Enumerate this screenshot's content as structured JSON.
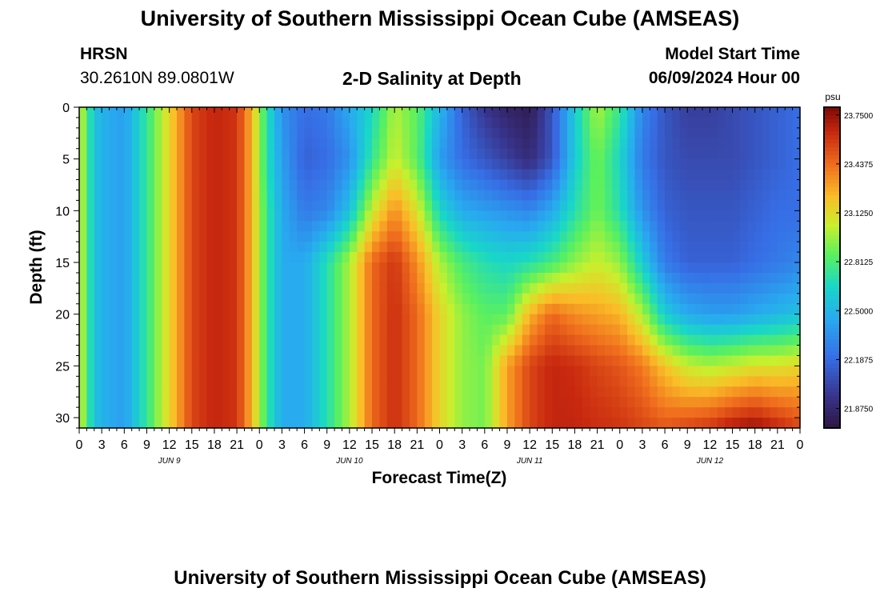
{
  "header": {
    "title": "University of Southern Mississippi Ocean Cube (AMSEAS)",
    "station": "HRSN",
    "coordinates": "30.2610N  89.0801W",
    "plot_title": "2-D Salinity at Depth",
    "model_label": "Model Start Time",
    "model_time": "06/09/2024 Hour 00"
  },
  "footer": {
    "title": "University of Southern Mississippi Ocean Cube (AMSEAS)"
  },
  "chart_data": {
    "type": "heatmap",
    "title": "2-D Salinity at Depth",
    "xlabel": "Forecast Time(Z)",
    "ylabel": "Depth (ft)",
    "xlim": [
      0,
      96
    ],
    "ylim": [
      0,
      31
    ],
    "x_tick_labels": [
      "0",
      "3",
      "6",
      "9",
      "12",
      "15",
      "18",
      "21",
      "0",
      "3",
      "6",
      "9",
      "12",
      "15",
      "18",
      "21",
      "0",
      "3",
      "6",
      "9",
      "12",
      "15",
      "18",
      "21",
      "0",
      "3",
      "6",
      "9",
      "12",
      "15",
      "18",
      "21",
      "0"
    ],
    "day_labels": [
      {
        "label": "JUN 9",
        "hour": 12
      },
      {
        "label": "JUN 10",
        "hour": 36
      },
      {
        "label": "JUN 11",
        "hour": 60
      },
      {
        "label": "JUN 12",
        "hour": 84
      }
    ],
    "y_ticks": [
      0,
      5,
      10,
      15,
      20,
      25,
      30
    ],
    "colorbar": {
      "unit": "psu",
      "min": 21.75,
      "max": 23.8,
      "tick_values": [
        21.875,
        22.1875,
        22.5,
        22.8125,
        23.125,
        23.4375,
        23.75
      ],
      "tick_labels": [
        "21.8750",
        "22.1875",
        "22.5000",
        "22.8125",
        "23.1250",
        "23.4375",
        "23.7500"
      ]
    },
    "profile_depths": [
      0,
      5,
      10,
      15,
      20,
      25,
      31
    ],
    "profiles": [
      {
        "hour": 0,
        "values": [
          23.1,
          23.1,
          23.1,
          23.1,
          23.1,
          23.1,
          23.1
        ]
      },
      {
        "hour": 2,
        "values": [
          22.55,
          22.55,
          22.55,
          22.55,
          22.55,
          22.55,
          22.55
        ]
      },
      {
        "hour": 4,
        "values": [
          22.45,
          22.45,
          22.45,
          22.45,
          22.45,
          22.45,
          22.45
        ]
      },
      {
        "hour": 6,
        "values": [
          22.4,
          22.4,
          22.4,
          22.4,
          22.4,
          22.4,
          22.4
        ]
      },
      {
        "hour": 9,
        "values": [
          22.75,
          22.75,
          22.75,
          22.75,
          22.75,
          22.75,
          22.75
        ]
      },
      {
        "hour": 12,
        "values": [
          23.15,
          23.15,
          23.15,
          23.15,
          23.15,
          23.15,
          23.15
        ]
      },
      {
        "hour": 15,
        "values": [
          23.55,
          23.55,
          23.55,
          23.55,
          23.55,
          23.55,
          23.55
        ]
      },
      {
        "hour": 18,
        "values": [
          23.65,
          23.65,
          23.65,
          23.65,
          23.65,
          23.65,
          23.65
        ]
      },
      {
        "hour": 21,
        "values": [
          23.6,
          23.6,
          23.6,
          23.6,
          23.6,
          23.6,
          23.6
        ]
      },
      {
        "hour": 23,
        "values": [
          23.25,
          23.25,
          23.25,
          23.25,
          23.25,
          23.25,
          23.25
        ]
      },
      {
        "hour": 25,
        "values": [
          22.7,
          22.7,
          22.75,
          22.75,
          22.75,
          22.75,
          22.75
        ]
      },
      {
        "hour": 27,
        "values": [
          22.35,
          22.4,
          22.45,
          22.45,
          22.45,
          22.45,
          22.45
        ]
      },
      {
        "hour": 30,
        "values": [
          22.2,
          22.15,
          22.25,
          22.45,
          22.45,
          22.45,
          22.45
        ]
      },
      {
        "hour": 33,
        "values": [
          22.25,
          22.2,
          22.3,
          22.7,
          22.7,
          22.7,
          22.7
        ]
      },
      {
        "hour": 36,
        "values": [
          22.45,
          22.35,
          22.55,
          23.0,
          23.0,
          23.0,
          23.0
        ]
      },
      {
        "hour": 39,
        "values": [
          22.65,
          22.75,
          23.05,
          23.45,
          23.45,
          23.45,
          23.45
        ]
      },
      {
        "hour": 42,
        "values": [
          23.0,
          23.05,
          23.35,
          23.6,
          23.62,
          23.62,
          23.62
        ]
      },
      {
        "hour": 45,
        "values": [
          22.85,
          22.85,
          23.1,
          23.35,
          23.45,
          23.45,
          23.45
        ]
      },
      {
        "hour": 48,
        "values": [
          22.5,
          22.4,
          22.65,
          23.0,
          23.15,
          23.15,
          23.15
        ]
      },
      {
        "hour": 51,
        "values": [
          22.15,
          22.2,
          22.45,
          22.8,
          22.95,
          22.95,
          22.95
        ]
      },
      {
        "hour": 54,
        "values": [
          21.95,
          22.1,
          22.4,
          22.7,
          22.85,
          22.9,
          22.9
        ]
      },
      {
        "hour": 57,
        "values": [
          21.85,
          22.0,
          22.35,
          22.65,
          22.85,
          23.3,
          23.3
        ]
      },
      {
        "hour": 60,
        "values": [
          21.8,
          21.9,
          22.3,
          22.7,
          23.25,
          23.55,
          23.55
        ]
      },
      {
        "hour": 63,
        "values": [
          22.1,
          22.1,
          22.45,
          22.8,
          23.45,
          23.65,
          23.65
        ]
      },
      {
        "hour": 66,
        "values": [
          22.6,
          22.6,
          22.7,
          22.95,
          23.35,
          23.62,
          23.65
        ]
      },
      {
        "hour": 69,
        "values": [
          23.0,
          22.9,
          22.9,
          23.05,
          23.3,
          23.55,
          23.62
        ]
      },
      {
        "hour": 72,
        "values": [
          22.75,
          22.65,
          22.7,
          22.95,
          23.25,
          23.5,
          23.6
        ]
      },
      {
        "hour": 75,
        "values": [
          22.3,
          22.25,
          22.35,
          22.6,
          23.0,
          23.4,
          23.55
        ]
      },
      {
        "hour": 78,
        "values": [
          22.1,
          22.1,
          22.15,
          22.25,
          22.6,
          23.2,
          23.5
        ]
      },
      {
        "hour": 81,
        "values": [
          22.0,
          22.05,
          22.1,
          22.15,
          22.45,
          23.05,
          23.55
        ]
      },
      {
        "hour": 84,
        "values": [
          22.0,
          22.05,
          22.1,
          22.15,
          22.4,
          23.0,
          23.6
        ]
      },
      {
        "hour": 87,
        "values": [
          22.05,
          22.05,
          22.1,
          22.15,
          22.4,
          23.05,
          23.7
        ]
      },
      {
        "hour": 90,
        "values": [
          22.1,
          22.1,
          22.15,
          22.2,
          22.45,
          23.1,
          23.75
        ]
      },
      {
        "hour": 93,
        "values": [
          22.15,
          22.15,
          22.2,
          22.25,
          22.5,
          23.1,
          23.65
        ]
      },
      {
        "hour": 96,
        "values": [
          22.2,
          22.2,
          22.2,
          22.3,
          22.55,
          23.15,
          23.55
        ]
      }
    ]
  }
}
